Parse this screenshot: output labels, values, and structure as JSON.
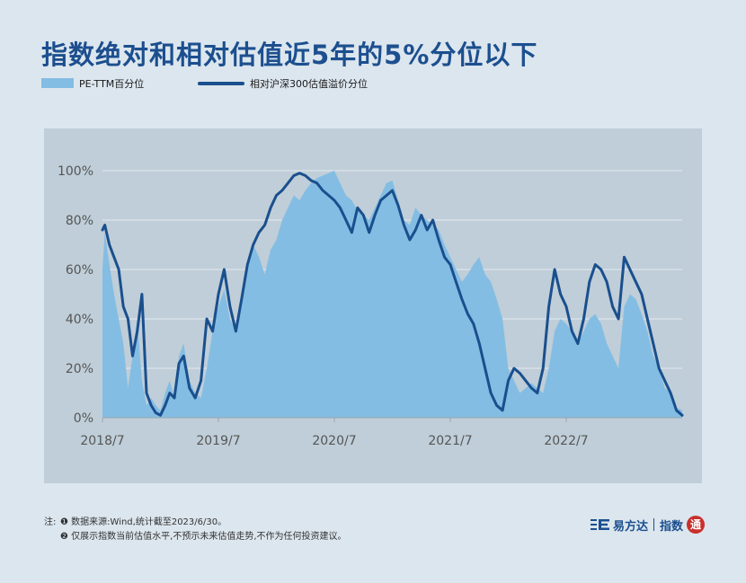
{
  "title": "指数绝对和相对估值近5年的5%分位以下",
  "legend": {
    "area_label": "PE-TTM百分位",
    "line_label": "相对沪深300估值溢价分位"
  },
  "colors": {
    "area": "#84bde3",
    "line": "#1a4f8e",
    "panel": "#bfced8",
    "background": "#dce6ee",
    "title": "#1c4f8f"
  },
  "notes": {
    "prefix": "注:",
    "item1_num": "❶",
    "item1": "数据来源:Wind,统计截至2023/6/30。",
    "item2_num": "❷",
    "item2": "仅展示指数当前估值水平,不预示未来估值走势,不作为任何投资建议。"
  },
  "brand": {
    "name": "易方达",
    "sub": "指数",
    "seal": "通"
  },
  "chart_data": {
    "type": "area",
    "y_tick_labels": [
      "0%",
      "20%",
      "40%",
      "60%",
      "80%",
      "100%"
    ],
    "ylim": [
      0,
      100
    ],
    "x_tick_labels": [
      "2018/7",
      "2019/7",
      "2020/7",
      "2021/7",
      "2022/7"
    ],
    "x_tick_positions": [
      2018.5,
      2019.5,
      2020.5,
      2021.5,
      2022.5
    ],
    "xlim": [
      2018.5,
      2023.5
    ],
    "grid": true,
    "x": [
      2018.5,
      2018.52,
      2018.56,
      2018.6,
      2018.64,
      2018.68,
      2018.72,
      2018.76,
      2018.8,
      2018.84,
      2018.88,
      2018.92,
      2018.96,
      2019.0,
      2019.04,
      2019.08,
      2019.12,
      2019.16,
      2019.2,
      2019.25,
      2019.3,
      2019.35,
      2019.4,
      2019.45,
      2019.5,
      2019.55,
      2019.6,
      2019.65,
      2019.7,
      2019.75,
      2019.8,
      2019.85,
      2019.9,
      2019.95,
      2020.0,
      2020.05,
      2020.1,
      2020.15,
      2020.2,
      2020.25,
      2020.3,
      2020.35,
      2020.4,
      2020.45,
      2020.5,
      2020.55,
      2020.6,
      2020.65,
      2020.7,
      2020.75,
      2020.8,
      2020.85,
      2020.9,
      2020.95,
      2021.0,
      2021.05,
      2021.1,
      2021.15,
      2021.2,
      2021.25,
      2021.3,
      2021.35,
      2021.4,
      2021.45,
      2021.5,
      2021.55,
      2021.6,
      2021.65,
      2021.7,
      2021.75,
      2021.8,
      2021.85,
      2021.9,
      2021.95,
      2022.0,
      2022.05,
      2022.1,
      2022.15,
      2022.2,
      2022.25,
      2022.3,
      2022.35,
      2022.4,
      2022.45,
      2022.5,
      2022.55,
      2022.6,
      2022.65,
      2022.7,
      2022.75,
      2022.8,
      2022.85,
      2022.9,
      2022.95,
      2023.0,
      2023.05,
      2023.1,
      2023.15,
      2023.2,
      2023.25,
      2023.3,
      2023.35,
      2023.4,
      2023.45,
      2023.5
    ],
    "series": [
      {
        "name": "PE-TTM百分位",
        "values": [
          60,
          75,
          62,
          50,
          40,
          30,
          12,
          25,
          40,
          15,
          5,
          8,
          5,
          3,
          10,
          15,
          8,
          25,
          30,
          15,
          10,
          8,
          20,
          35,
          45,
          52,
          40,
          35,
          50,
          60,
          70,
          65,
          58,
          68,
          72,
          80,
          85,
          90,
          88,
          92,
          95,
          97,
          98,
          99,
          100,
          95,
          90,
          88,
          84,
          82,
          80,
          85,
          90,
          95,
          96,
          88,
          80,
          78,
          85,
          82,
          80,
          78,
          76,
          70,
          65,
          60,
          55,
          58,
          62,
          65,
          58,
          55,
          48,
          40,
          20,
          15,
          10,
          12,
          14,
          12,
          10,
          20,
          35,
          40,
          38,
          35,
          30,
          35,
          40,
          42,
          38,
          30,
          25,
          20,
          45,
          50,
          48,
          42,
          35,
          25,
          20,
          12,
          10,
          4,
          3
        ],
        "color": "#84bde3"
      },
      {
        "name": "相对沪深300估值溢价分位",
        "values": [
          76,
          78,
          70,
          65,
          60,
          45,
          40,
          25,
          35,
          50,
          10,
          5,
          2,
          1,
          5,
          10,
          8,
          22,
          25,
          12,
          8,
          15,
          40,
          35,
          50,
          60,
          45,
          35,
          48,
          62,
          70,
          75,
          78,
          85,
          90,
          92,
          95,
          98,
          99,
          98,
          96,
          95,
          92,
          90,
          88,
          85,
          80,
          75,
          85,
          82,
          75,
          82,
          88,
          90,
          92,
          86,
          78,
          72,
          76,
          82,
          76,
          80,
          72,
          65,
          62,
          55,
          48,
          42,
          38,
          30,
          20,
          10,
          5,
          3,
          15,
          20,
          18,
          15,
          12,
          10,
          20,
          45,
          60,
          50,
          45,
          35,
          30,
          40,
          55,
          62,
          60,
          55,
          45,
          40,
          65,
          60,
          55,
          50,
          40,
          30,
          20,
          15,
          10,
          3,
          1
        ],
        "color": "#1a4f8e"
      }
    ]
  }
}
